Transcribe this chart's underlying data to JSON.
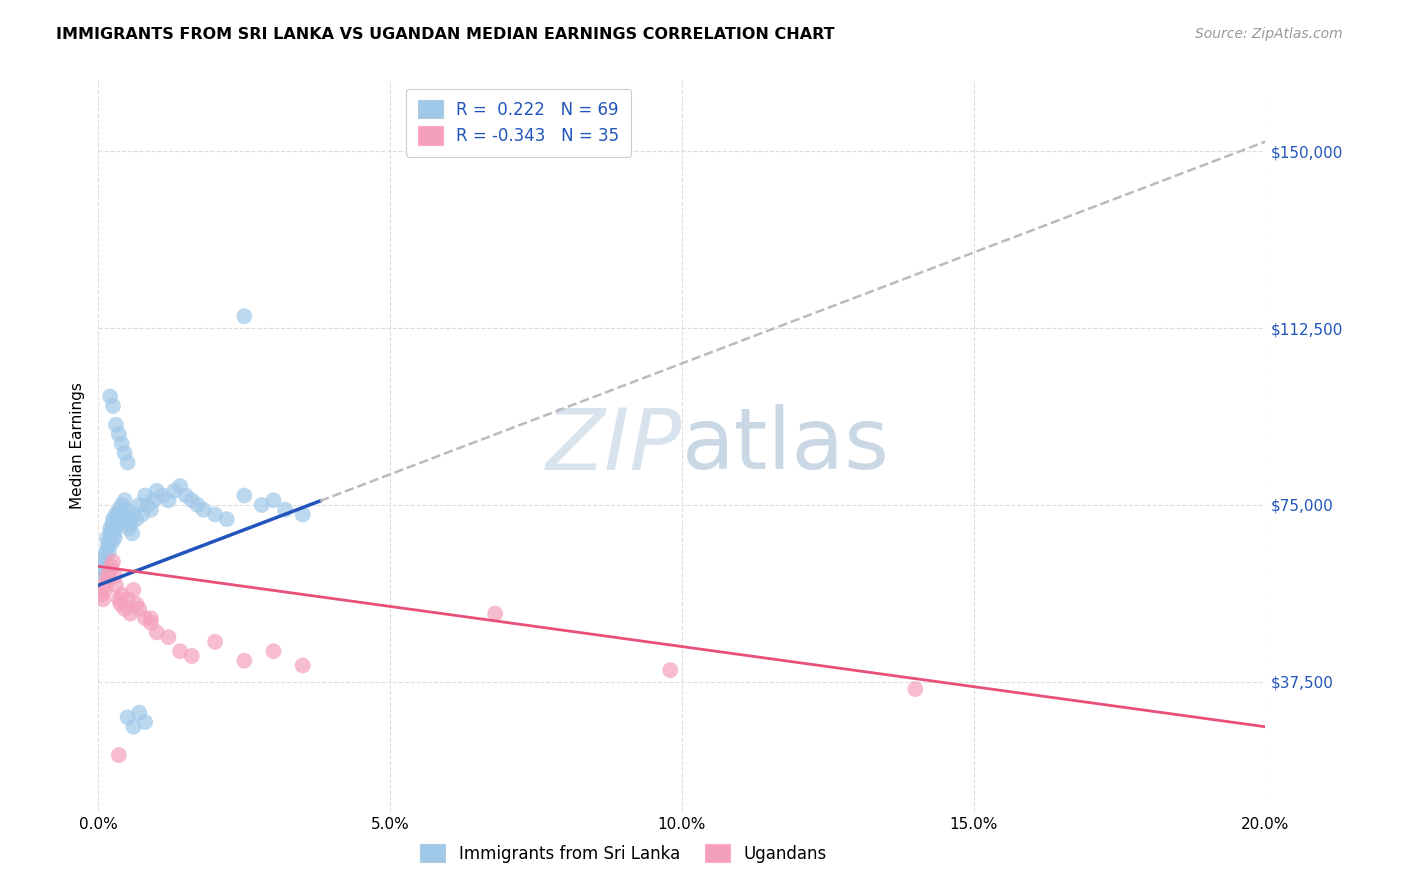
{
  "title": "IMMIGRANTS FROM SRI LANKA VS UGANDAN MEDIAN EARNINGS CORRELATION CHART",
  "source": "Source: ZipAtlas.com",
  "xlim": [
    0.0,
    20.0
  ],
  "ylim": [
    10000,
    165000
  ],
  "yticks": [
    37500,
    75000,
    112500,
    150000
  ],
  "ytick_labels": [
    "$37,500",
    "$75,000",
    "$112,500",
    "$150,000"
  ],
  "xticks": [
    0,
    5,
    10,
    15,
    20
  ],
  "xtick_labels": [
    "0.0%",
    "5.0%",
    "10.0%",
    "15.0%",
    "20.0%"
  ],
  "sri_lanka_R": "0.222",
  "sri_lanka_N": "69",
  "ugandan_R": "-0.343",
  "ugandan_N": "35",
  "sri_lanka_color": "#A0C8E8",
  "ugandan_color": "#F4A0BC",
  "sri_lanka_line_color": "#2255BB",
  "ugandan_line_color": "#E8507A",
  "trend_dashed_color": "#BBBBBB",
  "text_blue": "#2255BB",
  "text_gray": "#999999",
  "grid_color": "#DDDDDD",
  "watermark_color": "#C8D8E8",
  "background": "#FFFFFF",
  "ylabel": "Median Earnings",
  "bottom_legend_labels": [
    "Immigrants from Sri Lanka",
    "Ugandans"
  ],
  "sri_lanka_x": [
    0.05,
    0.07,
    0.08,
    0.1,
    0.12,
    0.13,
    0.15,
    0.16,
    0.17,
    0.18,
    0.2,
    0.21,
    0.22,
    0.23,
    0.24,
    0.25,
    0.26,
    0.27,
    0.28,
    0.3,
    0.32,
    0.33,
    0.35,
    0.36,
    0.38,
    0.4,
    0.42,
    0.45,
    0.48,
    0.5,
    0.52,
    0.55,
    0.58,
    0.6,
    0.65,
    0.7,
    0.75,
    0.8,
    0.85,
    0.9,
    0.95,
    1.0,
    1.1,
    1.2,
    1.3,
    1.4,
    1.5,
    1.6,
    1.7,
    1.8,
    2.0,
    2.2,
    2.5,
    2.8,
    3.0,
    3.2,
    3.5,
    0.5,
    0.6,
    0.7,
    0.8,
    0.3,
    0.4,
    0.5,
    0.2,
    0.25,
    0.35,
    0.45,
    2.5
  ],
  "sri_lanka_y": [
    62000,
    63000,
    61000,
    64000,
    60000,
    65000,
    68000,
    66000,
    67000,
    65000,
    70000,
    69000,
    68000,
    67000,
    71000,
    72000,
    70000,
    69000,
    68000,
    73000,
    71000,
    72000,
    74000,
    73000,
    71000,
    75000,
    73000,
    76000,
    74000,
    72000,
    70000,
    71000,
    69000,
    73000,
    72000,
    75000,
    73000,
    77000,
    75000,
    74000,
    76000,
    78000,
    77000,
    76000,
    78000,
    79000,
    77000,
    76000,
    75000,
    74000,
    73000,
    72000,
    77000,
    75000,
    76000,
    74000,
    73000,
    30000,
    28000,
    31000,
    29000,
    92000,
    88000,
    84000,
    98000,
    96000,
    90000,
    86000,
    115000
  ],
  "ugandan_x": [
    0.05,
    0.08,
    0.1,
    0.12,
    0.15,
    0.17,
    0.2,
    0.22,
    0.25,
    0.28,
    0.3,
    0.35,
    0.38,
    0.4,
    0.45,
    0.5,
    0.55,
    0.6,
    0.65,
    0.7,
    0.8,
    0.9,
    1.0,
    1.2,
    1.4,
    1.6,
    2.0,
    2.5,
    3.0,
    3.5,
    6.8,
    9.8,
    14.0,
    0.35,
    0.9
  ],
  "ugandan_y": [
    56000,
    55000,
    58000,
    57000,
    60000,
    59000,
    61000,
    62000,
    63000,
    60000,
    58000,
    55000,
    54000,
    56000,
    53000,
    55000,
    52000,
    57000,
    54000,
    53000,
    51000,
    50000,
    48000,
    47000,
    44000,
    43000,
    46000,
    42000,
    44000,
    41000,
    52000,
    40000,
    36000,
    22000,
    51000
  ],
  "sl_line_x0": 0.0,
  "sl_line_x_solid_end": 3.8,
  "sl_line_x_dash_end": 20.0,
  "sl_line_y0": 58000,
  "sl_line_slope": 4700,
  "ug_line_x0": 0.0,
  "ug_line_x_end": 20.0,
  "ug_line_y0": 62000,
  "ug_line_slope": -1700
}
